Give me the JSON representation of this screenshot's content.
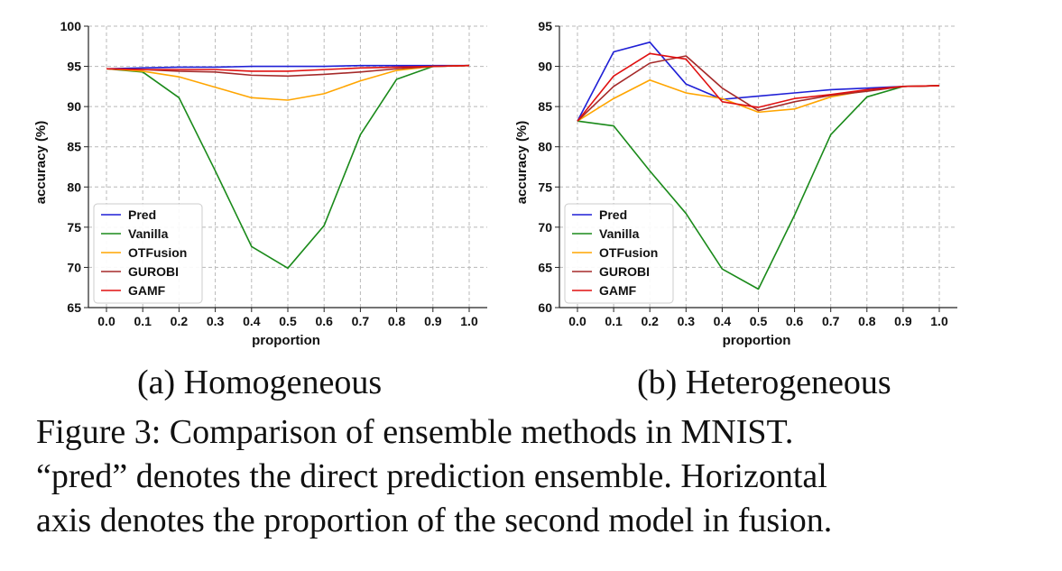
{
  "chart_data": [
    {
      "type": "line",
      "subcaption": "(a) Homogeneous",
      "xlabel": "proportion",
      "ylabel": "accuracy (%)",
      "xlim": [
        0.0,
        1.0
      ],
      "ylim": [
        65,
        100
      ],
      "xticks": [
        "0.0",
        "0.1",
        "0.2",
        "0.3",
        "0.4",
        "0.5",
        "0.6",
        "0.7",
        "0.8",
        "0.9",
        "1.0"
      ],
      "yticks": [
        "65",
        "70",
        "75",
        "80",
        "85",
        "90",
        "95",
        "100"
      ],
      "grid": true,
      "legend_position": "lower-left",
      "x": [
        0.0,
        0.1,
        0.2,
        0.3,
        0.4,
        0.5,
        0.6,
        0.7,
        0.8,
        0.9,
        1.0
      ],
      "series": [
        {
          "name": "Pred",
          "color": "#1f1fd6",
          "values": [
            94.7,
            94.8,
            94.9,
            94.9,
            95.0,
            95.0,
            95.0,
            95.1,
            95.1,
            95.1,
            95.1
          ]
        },
        {
          "name": "Vanilla",
          "color": "#1a8a1a",
          "values": [
            94.7,
            94.3,
            91.1,
            82.0,
            72.6,
            69.9,
            75.2,
            86.5,
            93.4,
            95.0,
            95.1
          ]
        },
        {
          "name": "OTFusion",
          "color": "#ffa500",
          "values": [
            94.7,
            94.4,
            93.7,
            92.4,
            91.1,
            90.8,
            91.6,
            93.2,
            94.5,
            95.0,
            95.1
          ]
        },
        {
          "name": "GUROBI",
          "color": "#a52a2a",
          "values": [
            94.7,
            94.6,
            94.4,
            94.3,
            93.9,
            93.8,
            94.0,
            94.3,
            94.7,
            95.0,
            95.1
          ]
        },
        {
          "name": "GAMF",
          "color": "#e01010",
          "values": [
            94.7,
            94.6,
            94.6,
            94.6,
            94.4,
            94.4,
            94.6,
            94.8,
            94.9,
            95.0,
            95.1
          ]
        }
      ]
    },
    {
      "type": "line",
      "subcaption": "(b) Heterogeneous",
      "xlabel": "proportion",
      "ylabel": "accuracy (%)",
      "xlim": [
        0.0,
        1.0
      ],
      "ylim": [
        60,
        95
      ],
      "xticks": [
        "0.0",
        "0.1",
        "0.2",
        "0.3",
        "0.4",
        "0.5",
        "0.6",
        "0.7",
        "0.8",
        "0.9",
        "1.0"
      ],
      "yticks": [
        "60",
        "65",
        "70",
        "75",
        "80",
        "85",
        "90",
        "95"
      ],
      "grid": true,
      "legend_position": "lower-left",
      "x": [
        0.0,
        0.1,
        0.2,
        0.3,
        0.4,
        0.5,
        0.6,
        0.7,
        0.8,
        0.9,
        1.0
      ],
      "series": [
        {
          "name": "Pred",
          "color": "#1f1fd6",
          "values": [
            83.2,
            91.8,
            93.0,
            87.8,
            85.9,
            86.3,
            86.7,
            87.1,
            87.3,
            87.5,
            87.6
          ]
        },
        {
          "name": "Vanilla",
          "color": "#1a8a1a",
          "values": [
            83.2,
            82.6,
            77.0,
            71.7,
            64.8,
            62.3,
            71.5,
            81.5,
            86.2,
            87.5,
            87.6
          ]
        },
        {
          "name": "OTFusion",
          "color": "#ffa500",
          "values": [
            83.2,
            86.0,
            88.3,
            86.7,
            86.0,
            84.3,
            84.7,
            86.2,
            87.0,
            87.5,
            87.6
          ]
        },
        {
          "name": "GUROBI",
          "color": "#a52a2a",
          "values": [
            83.2,
            87.5,
            90.4,
            91.3,
            87.3,
            84.5,
            85.6,
            86.4,
            86.9,
            87.5,
            87.6
          ]
        },
        {
          "name": "GAMF",
          "color": "#e01010",
          "values": [
            83.2,
            88.8,
            91.6,
            90.9,
            85.6,
            84.9,
            86.0,
            86.5,
            87.1,
            87.5,
            87.6
          ]
        }
      ]
    }
  ],
  "caption": {
    "lines": [
      "Figure 3:  Comparison of ensemble methods in MNIST.",
      "“pred” denotes the direct prediction ensemble. Horizontal",
      "axis denotes the proportion of the second model in fusion."
    ]
  }
}
